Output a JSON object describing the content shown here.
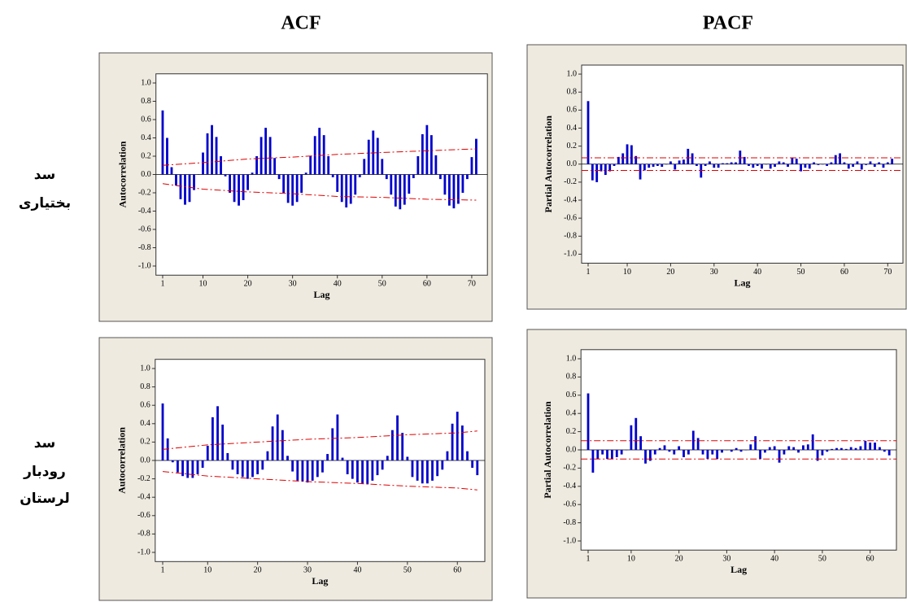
{
  "headers": {
    "acf": "ACF",
    "pacf": "PACF"
  },
  "row_labels": [
    [
      "سد",
      "بختیاری"
    ],
    [
      "سد",
      "رودبار",
      "لرستان"
    ]
  ],
  "chart_data": [
    {
      "type": "bar",
      "ylabel": "Autocorrelation",
      "xlabel": "Lag",
      "color": "#0000cc",
      "limit_color": "#dd0000",
      "x": [
        1,
        2,
        3,
        4,
        5,
        6,
        7,
        8,
        9,
        10,
        11,
        12,
        13,
        14,
        15,
        16,
        17,
        18,
        19,
        20,
        21,
        22,
        23,
        24,
        25,
        26,
        27,
        28,
        29,
        30,
        31,
        32,
        33,
        34,
        35,
        36,
        37,
        38,
        39,
        40,
        41,
        42,
        43,
        44,
        45,
        46,
        47,
        48,
        49,
        50,
        51,
        52,
        53,
        54,
        55,
        56,
        57,
        58,
        59,
        60,
        61,
        62,
        63,
        64,
        65,
        66,
        67,
        68,
        69,
        70,
        71
      ],
      "values": [
        0.7,
        0.4,
        0.08,
        -0.12,
        -0.27,
        -0.33,
        -0.3,
        -0.17,
        0.0,
        0.24,
        0.45,
        0.54,
        0.41,
        0.2,
        -0.02,
        -0.2,
        -0.3,
        -0.34,
        -0.28,
        -0.17,
        0.02,
        0.2,
        0.41,
        0.51,
        0.41,
        0.18,
        -0.05,
        -0.2,
        -0.31,
        -0.34,
        -0.3,
        -0.2,
        0.02,
        0.2,
        0.42,
        0.51,
        0.43,
        0.2,
        -0.03,
        -0.19,
        -0.3,
        -0.36,
        -0.32,
        -0.22,
        -0.03,
        0.17,
        0.38,
        0.48,
        0.4,
        0.17,
        -0.05,
        -0.22,
        -0.35,
        -0.38,
        -0.33,
        -0.21,
        -0.04,
        0.2,
        0.44,
        0.54,
        0.43,
        0.21,
        -0.05,
        -0.22,
        -0.34,
        -0.37,
        -0.32,
        -0.2,
        -0.05,
        0.19,
        0.39
      ],
      "limit_x": [
        1,
        10,
        20,
        30,
        40,
        50,
        60,
        71
      ],
      "upper_limit": [
        0.1,
        0.13,
        0.17,
        0.19,
        0.22,
        0.24,
        0.26,
        0.28
      ],
      "lower_limit": [
        -0.1,
        -0.16,
        -0.19,
        -0.21,
        -0.24,
        -0.25,
        -0.27,
        -0.28
      ],
      "xlim": [
        -0.5,
        73.5
      ],
      "ylim": [
        -1.1,
        1.1
      ],
      "xticks": [
        1,
        10,
        20,
        30,
        40,
        50,
        60,
        70
      ],
      "yticks": [
        {
          "value": 1,
          "label": "1.0"
        },
        {
          "value": 0.8,
          "label": "0.8"
        },
        {
          "value": 0.6,
          "label": "0.6"
        },
        {
          "value": 0.4,
          "label": "0.4"
        },
        {
          "value": 0.2,
          "label": "0.2"
        },
        {
          "value": 0,
          "label": "0.0"
        },
        {
          "value": -0.2,
          "label": "-0.2"
        },
        {
          "value": -0.4,
          "label": "-0.4"
        },
        {
          "value": -0.6,
          "label": "-0.6"
        },
        {
          "value": -0.8,
          "label": "-0.8"
        },
        {
          "value": -1,
          "label": "-1.0"
        }
      ]
    },
    {
      "type": "bar",
      "ylabel": "Autocorrelation",
      "xlabel": "Lag",
      "color": "#0000cc",
      "limit_color": "#dd0000",
      "x": [
        1,
        2,
        3,
        4,
        5,
        6,
        7,
        8,
        9,
        10,
        11,
        12,
        13,
        14,
        15,
        16,
        17,
        18,
        19,
        20,
        21,
        22,
        23,
        24,
        25,
        26,
        27,
        28,
        29,
        30,
        31,
        32,
        33,
        34,
        35,
        36,
        37,
        38,
        39,
        40,
        41,
        42,
        43,
        44,
        45,
        46,
        47,
        48,
        49,
        50,
        51,
        52,
        53,
        54,
        55,
        56,
        57,
        58,
        59,
        60,
        61,
        62,
        63,
        64
      ],
      "values": [
        0.62,
        0.24,
        -0.02,
        -0.13,
        -0.17,
        -0.19,
        -0.19,
        -0.15,
        -0.08,
        0.16,
        0.47,
        0.59,
        0.39,
        0.08,
        -0.1,
        -0.15,
        -0.18,
        -0.2,
        -0.18,
        -0.15,
        -0.1,
        0.1,
        0.37,
        0.5,
        0.33,
        0.05,
        -0.12,
        -0.22,
        -0.23,
        -0.24,
        -0.22,
        -0.18,
        -0.13,
        0.07,
        0.35,
        0.5,
        0.03,
        -0.15,
        -0.2,
        -0.24,
        -0.25,
        -0.26,
        -0.22,
        -0.16,
        -0.1,
        0.05,
        0.33,
        0.49,
        0.3,
        0.04,
        -0.18,
        -0.22,
        -0.25,
        -0.25,
        -0.22,
        -0.17,
        -0.1,
        0.1,
        0.4,
        0.53,
        0.38,
        0.1,
        -0.08,
        -0.16
      ],
      "limit_x": [
        1,
        10,
        20,
        30,
        40,
        50,
        60,
        64
      ],
      "upper_limit": [
        0.12,
        0.17,
        0.2,
        0.23,
        0.25,
        0.28,
        0.3,
        0.32
      ],
      "lower_limit": [
        -0.12,
        -0.17,
        -0.2,
        -0.23,
        -0.25,
        -0.28,
        -0.3,
        -0.32
      ],
      "xlim": [
        -0.5,
        65.5
      ],
      "ylim": [
        -1.1,
        1.1
      ],
      "xticks": [
        1,
        10,
        20,
        30,
        40,
        50,
        60
      ],
      "yticks": [
        {
          "value": 1,
          "label": "1.0"
        },
        {
          "value": 0.8,
          "label": "0.8"
        },
        {
          "value": 0.6,
          "label": "0.6"
        },
        {
          "value": 0.4,
          "label": "0.4"
        },
        {
          "value": 0.2,
          "label": "0.2"
        },
        {
          "value": 0,
          "label": "0.0"
        },
        {
          "value": -0.2,
          "label": "-0.2"
        },
        {
          "value": -0.4,
          "label": "-0.4"
        },
        {
          "value": -0.6,
          "label": "-0.6"
        },
        {
          "value": -0.8,
          "label": "-0.8"
        },
        {
          "value": -1,
          "label": "-1.0"
        }
      ]
    },
    {
      "type": "bar",
      "ylabel": "Partial Autocorrelation",
      "xlabel": "Lag",
      "color": "#0000cc",
      "limit_color": "#dd0000",
      "x": [
        1,
        2,
        3,
        4,
        5,
        6,
        7,
        8,
        9,
        10,
        11,
        12,
        13,
        14,
        15,
        16,
        17,
        18,
        19,
        20,
        21,
        22,
        23,
        24,
        25,
        26,
        27,
        28,
        29,
        30,
        31,
        32,
        33,
        34,
        35,
        36,
        37,
        38,
        39,
        40,
        41,
        42,
        43,
        44,
        45,
        46,
        47,
        48,
        49,
        50,
        51,
        52,
        53,
        54,
        55,
        56,
        57,
        58,
        59,
        60,
        61,
        62,
        63,
        64,
        65,
        66,
        67,
        68,
        69,
        70,
        71
      ],
      "values": [
        0.7,
        -0.18,
        -0.2,
        -0.08,
        -0.12,
        -0.08,
        -0.02,
        0.08,
        0.12,
        0.22,
        0.21,
        0.09,
        -0.17,
        -0.07,
        -0.04,
        -0.03,
        -0.02,
        -0.03,
        0.0,
        0.03,
        -0.06,
        0.04,
        0.05,
        0.17,
        0.12,
        -0.02,
        -0.15,
        -0.02,
        0.03,
        -0.04,
        -0.04,
        0.01,
        0.01,
        0.02,
        0.02,
        0.15,
        0.08,
        -0.02,
        -0.04,
        -0.02,
        -0.05,
        0.0,
        -0.05,
        -0.03,
        0.03,
        0.02,
        -0.03,
        0.07,
        0.06,
        -0.08,
        -0.04,
        -0.05,
        0.02,
        -0.01,
        0.0,
        -0.02,
        0.02,
        0.1,
        0.12,
        0.02,
        -0.05,
        -0.03,
        0.03,
        -0.06,
        -0.01,
        0.03,
        -0.03,
        0.02,
        -0.04,
        0.02,
        0.06
      ],
      "upper_limit": 0.07,
      "lower_limit": -0.07,
      "xlim": [
        -0.5,
        73.5
      ],
      "ylim": [
        -1.1,
        1.1
      ],
      "xticks": [
        1,
        10,
        20,
        30,
        40,
        50,
        60,
        70
      ],
      "yticks": [
        {
          "value": 1,
          "label": "1.0"
        },
        {
          "value": 0.8,
          "label": "0.8"
        },
        {
          "value": 0.6,
          "label": "0.6"
        },
        {
          "value": 0.4,
          "label": "0.4"
        },
        {
          "value": 0.2,
          "label": "0.2"
        },
        {
          "value": 0,
          "label": "0.0"
        },
        {
          "value": -0.2,
          "label": "-0.2"
        },
        {
          "value": -0.4,
          "label": "-0.4"
        },
        {
          "value": -0.6,
          "label": "-0.6"
        },
        {
          "value": -0.8,
          "label": "-0.8"
        },
        {
          "value": -1,
          "label": "-1.0"
        }
      ]
    },
    {
      "type": "bar",
      "ylabel": "Partial Autocorrelation",
      "xlabel": "Lag",
      "color": "#0000cc",
      "limit_color": "#dd0000",
      "x": [
        1,
        2,
        3,
        4,
        5,
        6,
        7,
        8,
        9,
        10,
        11,
        12,
        13,
        14,
        15,
        16,
        17,
        18,
        19,
        20,
        21,
        22,
        23,
        24,
        25,
        26,
        27,
        28,
        29,
        30,
        31,
        32,
        33,
        34,
        35,
        36,
        37,
        38,
        39,
        40,
        41,
        42,
        43,
        44,
        45,
        46,
        47,
        48,
        49,
        50,
        51,
        52,
        53,
        54,
        55,
        56,
        57,
        58,
        59,
        60,
        61,
        62,
        63,
        64
      ],
      "values": [
        0.62,
        -0.25,
        -0.1,
        -0.05,
        -0.1,
        -0.1,
        -0.08,
        -0.05,
        0.0,
        0.27,
        0.35,
        0.15,
        -0.15,
        -0.12,
        -0.05,
        0.02,
        0.05,
        -0.02,
        -0.05,
        0.04,
        -0.08,
        -0.05,
        0.21,
        0.13,
        -0.05,
        -0.1,
        -0.05,
        -0.1,
        -0.03,
        0.0,
        -0.02,
        0.02,
        -0.02,
        0.0,
        0.06,
        0.15,
        -0.1,
        -0.03,
        0.03,
        0.04,
        -0.14,
        -0.05,
        0.04,
        0.03,
        -0.03,
        0.05,
        0.06,
        0.17,
        -0.12,
        -0.06,
        -0.02,
        0.01,
        0.02,
        0.02,
        0.01,
        0.03,
        0.02,
        0.04,
        0.1,
        0.08,
        0.08,
        0.03,
        -0.02,
        -0.06
      ],
      "upper_limit": 0.1,
      "lower_limit": -0.1,
      "xlim": [
        -0.5,
        65.5
      ],
      "ylim": [
        -1.1,
        1.1
      ],
      "xticks": [
        1,
        10,
        20,
        30,
        40,
        50,
        60
      ],
      "yticks": [
        {
          "value": 1,
          "label": "1.0"
        },
        {
          "value": 0.8,
          "label": "0.8"
        },
        {
          "value": 0.6,
          "label": "0.6"
        },
        {
          "value": 0.4,
          "label": "0.4"
        },
        {
          "value": 0.2,
          "label": "0.2"
        },
        {
          "value": 0,
          "label": "0.0"
        },
        {
          "value": -0.2,
          "label": "-0.2"
        },
        {
          "value": -0.4,
          "label": "-0.4"
        },
        {
          "value": -0.6,
          "label": "-0.6"
        },
        {
          "value": -0.8,
          "label": "-0.8"
        },
        {
          "value": -1,
          "label": "-1.0"
        }
      ]
    }
  ]
}
